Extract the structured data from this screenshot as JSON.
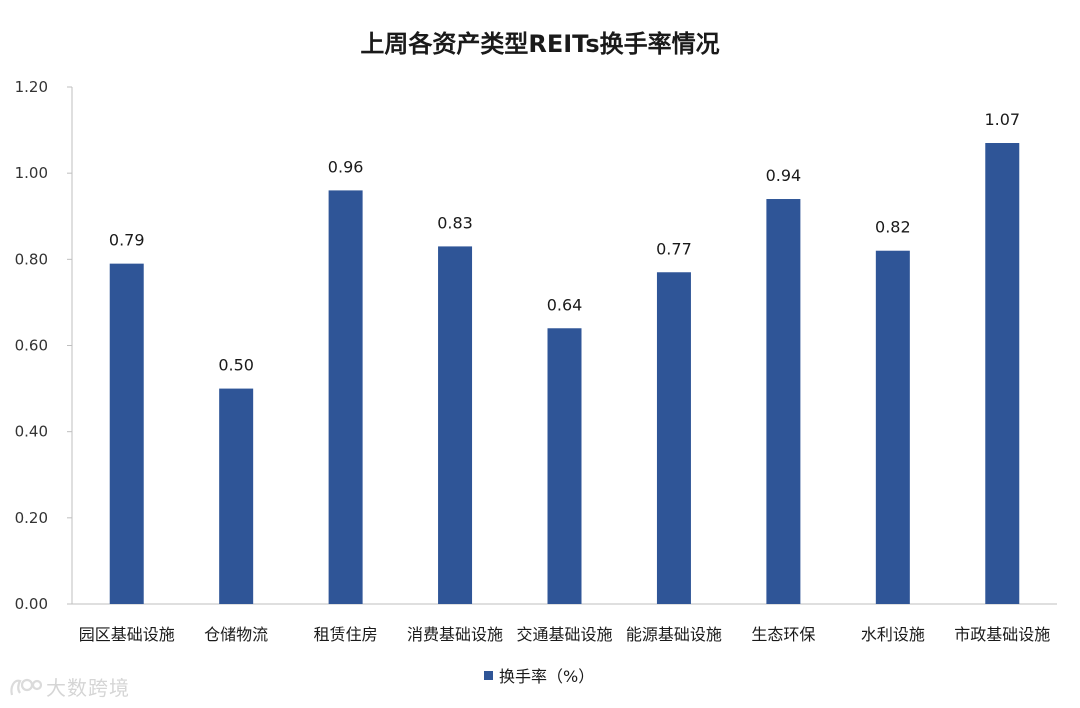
{
  "chart_data": {
    "type": "bar",
    "title": "上周各资产类型REITs换手率情况",
    "categories": [
      "园区基础设施",
      "仓储物流",
      "租赁住房",
      "消费基础设施",
      "交通基础设施",
      "能源基础设施",
      "生态环保",
      "水利设施",
      "市政基础设施"
    ],
    "series": [
      {
        "name": "换手率（%）",
        "values": [
          0.79,
          0.5,
          0.96,
          0.83,
          0.64,
          0.77,
          0.94,
          0.82,
          1.07
        ],
        "labels": [
          "0.79",
          "0.50",
          "0.96",
          "0.83",
          "0.64",
          "0.77",
          "0.94",
          "0.82",
          "1.07"
        ]
      }
    ],
    "ylim": [
      0,
      1.2
    ],
    "yticks": [
      "0.00",
      "0.20",
      "0.40",
      "0.60",
      "0.80",
      "1.00",
      "1.20"
    ],
    "grid": false,
    "legend_position": "bottom",
    "bar_color": "#2F5597"
  },
  "watermark": {
    "text": "大数跨境"
  }
}
